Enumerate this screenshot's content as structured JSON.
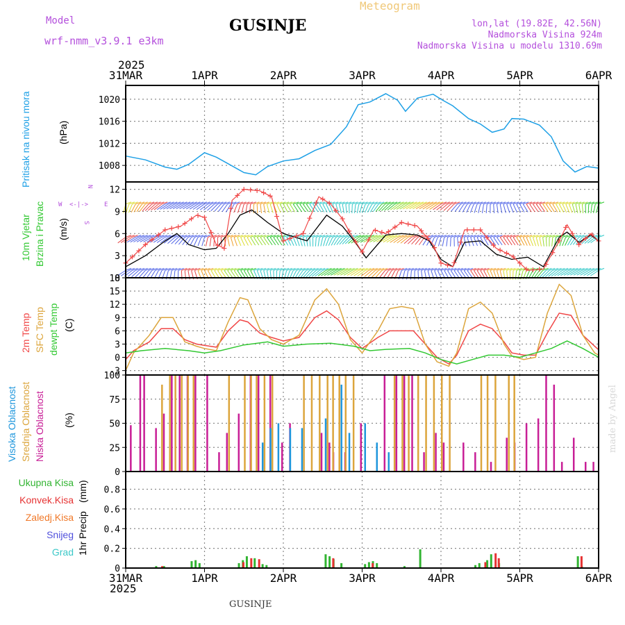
{
  "header": {
    "model_label": "Model",
    "model_name": "wrf-nmm_v3.9.1  e3km",
    "meteogram_label": "Meteogram",
    "station": "GUSINJE",
    "lonlat": "lon,lat (19.82E, 42.56N)",
    "elevation": "Nadmorska Visina 924m",
    "model_elevation": "Nadmorska Visina u modelu 1310.69m",
    "year": "2025",
    "footer_station": "GUSINJE",
    "credit": "made by Angel"
  },
  "colors": {
    "pressure": "#1ea0e6",
    "temp2m": "#f04646",
    "sfc_temp": "#dca53c",
    "dewpt": "#32c832",
    "cloud_high": "#1e96dc",
    "cloud_mid": "#dca53c",
    "cloud_low": "#c81e96",
    "gust": "#f04646",
    "wind_speed": "#000000",
    "precip_total": "#32b432",
    "precip_conv": "#e63232",
    "precip_frozen": "#f07828",
    "precip_snow": "#5050dc",
    "precip_graupel": "#3cc8c8",
    "legend_purple": "#b450dc",
    "meteogram_title": "#f0c878",
    "grid": "#888888"
  },
  "chart_data": [
    {
      "type": "line",
      "title": "Pritisak na nivou mora",
      "ylabel": "(hPa)",
      "ylim": [
        1005,
        1022.5
      ],
      "yticks": [
        "1008",
        "1012",
        "1016",
        "1020"
      ],
      "xlim_days": [
        0,
        6
      ],
      "x_day_labels": [
        "31MAR",
        "1APR",
        "2APR",
        "3APR",
        "4APR",
        "5APR",
        "6APR"
      ],
      "series": [
        {
          "name": "MSLP",
          "color_key": "pressure",
          "x": [
            0,
            0.25,
            0.5,
            0.65,
            0.8,
            1.0,
            1.15,
            1.3,
            1.5,
            1.65,
            1.8,
            2.0,
            2.2,
            2.4,
            2.6,
            2.8,
            2.95,
            3.1,
            3.3,
            3.45,
            3.55,
            3.7,
            3.9,
            4.0,
            4.15,
            4.35,
            4.5,
            4.65,
            4.8,
            4.9,
            5.05,
            5.25,
            5.4,
            5.55,
            5.7,
            5.85,
            6.0
          ],
          "values": [
            1009.7,
            1009.0,
            1007.7,
            1007.3,
            1008.2,
            1010.3,
            1009.5,
            1008.3,
            1006.7,
            1006.3,
            1007.8,
            1008.8,
            1009.2,
            1010.7,
            1011.8,
            1015.0,
            1019.0,
            1019.5,
            1021.0,
            1019.8,
            1017.8,
            1020.2,
            1020.9,
            1020.0,
            1018.8,
            1016.5,
            1015.5,
            1014.0,
            1014.6,
            1016.5,
            1016.4,
            1015.3,
            1013.2,
            1008.8,
            1006.8,
            1007.8,
            1007.5
          ]
        }
      ]
    },
    {
      "type": "line",
      "title": "10m Vjetar",
      "subtitle": "Brzina i Pravac",
      "ylabel": "(m/s)",
      "ylim": [
        0,
        13
      ],
      "yticks": [
        "0",
        "3",
        "6",
        "9",
        "12"
      ],
      "compass_letters": [
        "W",
        "E",
        "N",
        "S"
      ],
      "series": [
        {
          "name": "wind speed",
          "color_key": "wind_speed",
          "x": [
            0,
            0.25,
            0.5,
            0.65,
            0.8,
            1.0,
            1.15,
            1.3,
            1.45,
            1.6,
            1.8,
            2.0,
            2.3,
            2.55,
            2.75,
            2.9,
            3.05,
            3.3,
            3.5,
            3.7,
            3.85,
            4.0,
            4.15,
            4.3,
            4.5,
            4.7,
            4.9,
            5.1,
            5.3,
            5.5,
            5.6,
            5.75,
            5.9,
            6.0
          ],
          "values": [
            1.5,
            3.0,
            5.0,
            6.0,
            4.5,
            3.8,
            4.0,
            6.0,
            8.5,
            9.2,
            7.5,
            6.0,
            5.0,
            8.5,
            7.0,
            5.0,
            2.7,
            5.8,
            6.0,
            5.8,
            5.0,
            2.5,
            1.5,
            4.8,
            5.0,
            3.2,
            2.5,
            2.8,
            1.5,
            5.5,
            6.2,
            4.8,
            5.8,
            5.0
          ]
        },
        {
          "name": "gusts",
          "color_key": "gust",
          "x": [
            0,
            0.25,
            0.5,
            0.7,
            0.9,
            1.0,
            1.15,
            1.25,
            1.35,
            1.5,
            1.7,
            1.85,
            2.0,
            2.25,
            2.45,
            2.6,
            2.75,
            2.85,
            3.0,
            3.15,
            3.3,
            3.5,
            3.7,
            3.9,
            4.0,
            4.15,
            4.3,
            4.5,
            4.7,
            4.9,
            5.1,
            5.3,
            5.5,
            5.6,
            5.75,
            5.9,
            6.0
          ],
          "values": [
            2.0,
            4.5,
            6.5,
            7.0,
            8.5,
            8.2,
            4.5,
            4.0,
            10.5,
            12.0,
            11.8,
            11.0,
            5.0,
            6.0,
            11.0,
            10.0,
            8.0,
            6.0,
            3.5,
            6.5,
            6.0,
            7.5,
            7.0,
            4.5,
            2.0,
            1.5,
            6.5,
            6.5,
            4.0,
            3.0,
            1.0,
            1.2,
            5.0,
            7.2,
            4.5,
            6.0,
            5.0
          ]
        }
      ],
      "barb_rows_ms": [
        10,
        5.5,
        1
      ]
    },
    {
      "type": "line",
      "title": "2m Temp",
      "titles_extra": [
        "SFC Temp",
        "dewpt Temp"
      ],
      "ylabel": "(C)",
      "ylim": [
        -4,
        18
      ],
      "yticks": [
        "-3",
        "0",
        "3",
        "6",
        "9",
        "12",
        "15",
        "18"
      ],
      "series": [
        {
          "name": "2m Temp",
          "color_key": "temp2m",
          "x": [
            0,
            0.1,
            0.3,
            0.45,
            0.6,
            0.75,
            0.9,
            1.0,
            1.15,
            1.3,
            1.45,
            1.55,
            1.7,
            1.85,
            2.0,
            2.2,
            2.4,
            2.55,
            2.7,
            2.85,
            3.0,
            3.2,
            3.35,
            3.5,
            3.65,
            3.8,
            3.95,
            4.1,
            4.2,
            4.35,
            4.5,
            4.65,
            4.8,
            4.9,
            5.05,
            5.2,
            5.35,
            5.5,
            5.65,
            5.8,
            5.95,
            6.0
          ],
          "values": [
            -0.5,
            1.5,
            3.5,
            6.5,
            6.5,
            4.0,
            3.0,
            2.7,
            2.3,
            6.0,
            8.5,
            8.0,
            5.5,
            4.5,
            3.7,
            4.5,
            9.0,
            10.5,
            8.5,
            4.5,
            2.0,
            4.5,
            6.0,
            6.0,
            6.0,
            3.0,
            0.0,
            -1.5,
            0.5,
            6.0,
            7.5,
            6.5,
            3.5,
            1.0,
            0.5,
            0.5,
            5.5,
            10.0,
            9.5,
            5.0,
            2.5,
            1.7
          ]
        },
        {
          "name": "SFC Temp",
          "color_key": "sfc_temp",
          "x": [
            0,
            0.1,
            0.3,
            0.45,
            0.6,
            0.75,
            0.9,
            1.0,
            1.15,
            1.3,
            1.45,
            1.55,
            1.7,
            1.85,
            2.0,
            2.2,
            2.4,
            2.55,
            2.7,
            2.85,
            3.0,
            3.2,
            3.35,
            3.5,
            3.65,
            3.8,
            3.95,
            4.1,
            4.2,
            4.35,
            4.5,
            4.65,
            4.8,
            4.9,
            5.05,
            5.2,
            5.35,
            5.5,
            5.65,
            5.8,
            5.95,
            6.0
          ],
          "values": [
            -3.0,
            1.0,
            5.0,
            9.0,
            9.0,
            3.5,
            2.5,
            2.0,
            1.5,
            8.0,
            13.5,
            13.0,
            6.5,
            4.0,
            3.0,
            5.0,
            13.0,
            15.5,
            12.0,
            4.0,
            1.0,
            6.0,
            11.0,
            11.5,
            11.0,
            3.0,
            -1.0,
            -2.0,
            1.0,
            11.0,
            12.5,
            10.0,
            3.0,
            0.3,
            -0.5,
            0.0,
            10.0,
            16.5,
            14.0,
            5.0,
            1.0,
            0.5
          ]
        },
        {
          "name": "dewpt Temp",
          "color_key": "dewpt",
          "x": [
            0,
            0.2,
            0.5,
            0.8,
            1.0,
            1.2,
            1.5,
            1.8,
            2.0,
            2.3,
            2.6,
            2.9,
            3.1,
            3.3,
            3.6,
            3.8,
            4.0,
            4.2,
            4.4,
            4.6,
            4.8,
            5.0,
            5.2,
            5.4,
            5.6,
            5.8,
            6.0
          ],
          "values": [
            1.0,
            1.5,
            2.0,
            1.5,
            1.0,
            1.5,
            2.8,
            3.5,
            2.5,
            3.0,
            3.2,
            2.5,
            1.5,
            1.8,
            2.0,
            1.0,
            -0.5,
            -1.5,
            -0.5,
            0.5,
            0.5,
            0.0,
            1.0,
            2.0,
            3.7,
            2.0,
            0.0
          ]
        }
      ]
    },
    {
      "type": "bar",
      "title": "Visoka Oblacnost",
      "titles_extra": [
        "Srednja Oblacnost",
        "Niska Oblacnost"
      ],
      "ylabel": "(%)",
      "ylim": [
        0,
        100
      ],
      "yticks": [
        "0",
        "25",
        "50",
        "75",
        "100"
      ],
      "bar_series": [
        {
          "name": "Niska",
          "color_key": "cloud_low",
          "x": [
            0.08,
            0.2,
            0.25,
            0.4,
            0.5,
            0.6,
            0.7,
            0.8,
            0.9,
            1.05,
            1.2,
            1.3,
            1.45,
            1.6,
            1.7,
            1.85,
            2.0,
            2.1,
            2.5,
            2.6,
            2.65,
            2.8,
            3.0,
            3.3,
            3.45,
            3.55,
            3.65,
            3.8,
            3.95,
            4.05,
            4.3,
            4.45,
            4.65,
            4.85,
            4.95,
            5.1,
            5.25,
            5.35,
            5.45,
            5.55,
            5.7,
            5.85,
            5.95
          ],
          "values": [
            48,
            100,
            100,
            45,
            60,
            100,
            100,
            100,
            100,
            100,
            20,
            40,
            60,
            100,
            100,
            100,
            30,
            50,
            40,
            30,
            20,
            20,
            50,
            100,
            100,
            100,
            100,
            20,
            40,
            30,
            30,
            20,
            10,
            35,
            30,
            50,
            55,
            100,
            90,
            10,
            35,
            10,
            10
          ]
        },
        {
          "name": "Srednja",
          "color_key": "cloud_mid",
          "x": [
            0.45,
            0.55,
            0.62,
            0.7,
            0.78,
            0.85,
            1.3,
            1.5,
            1.58,
            1.65,
            1.75,
            1.85,
            2.25,
            2.35,
            2.45,
            2.55,
            2.62,
            2.7,
            2.78,
            2.88,
            3.4,
            3.5,
            3.58,
            3.7,
            3.8,
            3.9,
            4.0,
            4.1,
            4.5,
            4.58,
            4.68,
            4.85,
            4.92
          ],
          "values": [
            90,
            100,
            100,
            100,
            100,
            100,
            100,
            100,
            100,
            100,
            100,
            100,
            100,
            100,
            100,
            100,
            100,
            100,
            100,
            100,
            100,
            100,
            100,
            100,
            100,
            100,
            100,
            100,
            100,
            100,
            100,
            100,
            100
          ]
        },
        {
          "name": "Visoka",
          "color_key": "cloud_high",
          "x": [
            1.7,
            1.8,
            1.9,
            2.05,
            2.2,
            2.5,
            2.7,
            2.8,
            3.0,
            3.15,
            3.3
          ],
          "values": [
            30,
            45,
            50,
            45,
            45,
            55,
            90,
            40,
            50,
            30,
            20
          ]
        }
      ]
    },
    {
      "type": "bar",
      "title": "1hr Precip",
      "ylabel": "(mm)",
      "ylim": [
        0,
        0.98
      ],
      "yticks": [
        "0",
        "0.2",
        "0.4",
        "0.6",
        "0.8"
      ],
      "legend": [
        "Ukupna Kisa",
        "Konvek.Kisa",
        "Zaledj.Kisa",
        "Snijeg",
        "Grad"
      ],
      "bar_series": [
        {
          "name": "Ukupna Kisa",
          "color_key": "precip_total",
          "x": [
            0.4,
            0.5,
            0.85,
            0.9,
            0.95,
            1.45,
            1.5,
            1.55,
            1.65,
            1.75,
            1.8,
            2.55,
            2.6,
            2.65,
            2.75,
            3.05,
            3.1,
            3.15,
            3.2,
            3.55,
            3.75,
            4.45,
            4.5,
            4.6,
            4.65,
            4.75,
            5.75,
            5.8
          ],
          "values": [
            0.02,
            0.02,
            0.07,
            0.08,
            0.05,
            0.05,
            0.08,
            0.12,
            0.1,
            0.04,
            0.03,
            0.14,
            0.12,
            0.09,
            0.05,
            0.04,
            0.06,
            0.07,
            0.05,
            0.02,
            0.19,
            0.03,
            0.05,
            0.08,
            0.14,
            0.05,
            0.12,
            0.02
          ]
        },
        {
          "name": "Konvek.Kisa",
          "color_key": "precip_conv",
          "x": [
            0.45,
            1.48,
            1.58,
            1.68,
            2.62,
            3.12,
            4.55,
            4.68,
            4.72,
            5.77
          ],
          "values": [
            0.02,
            0.06,
            0.1,
            0.09,
            0.1,
            0.05,
            0.06,
            0.15,
            0.1,
            0.12
          ]
        }
      ]
    }
  ]
}
